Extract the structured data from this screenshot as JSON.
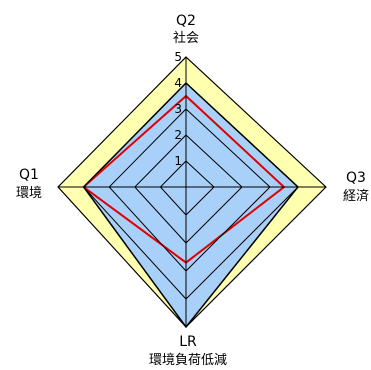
{
  "chart_data": {
    "type": "radar",
    "axes": [
      {
        "code": "Q2",
        "name": "社会"
      },
      {
        "code": "Q3",
        "name": "経済"
      },
      {
        "code": "LR",
        "name": "環境負荷低減"
      },
      {
        "code": "Q1",
        "name": "環境"
      }
    ],
    "rlim": [
      0,
      5
    ],
    "ticks": [
      "1",
      "2",
      "3",
      "4",
      "5"
    ],
    "series": [
      {
        "values": [
          4,
          4,
          5,
          4
        ],
        "fill": "#a8d0f8",
        "stroke": "#000000"
      },
      {
        "values": [
          3.5,
          3.5,
          2.7,
          4
        ],
        "fill": "none",
        "stroke": "#e00000"
      }
    ],
    "bands": {
      "outer": "#ffffb0",
      "inner": "#a8d0f8"
    }
  }
}
